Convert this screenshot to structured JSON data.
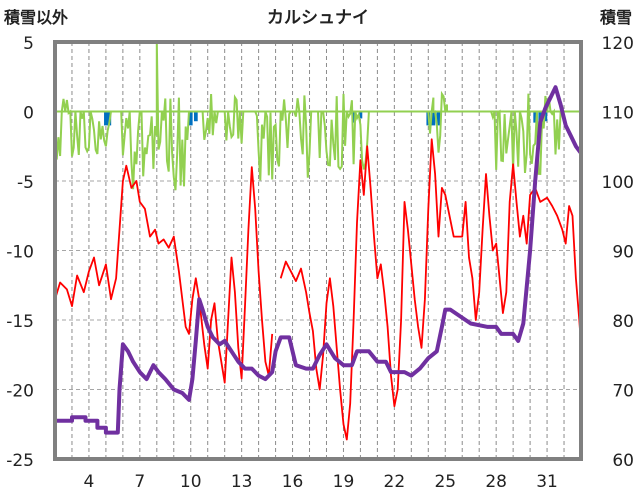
{
  "chart_data": {
    "type": "line",
    "title": "カルシュナイ",
    "left_axis_label": "積雪以外",
    "right_axis_label": "積雪",
    "left_ylim": [
      -25,
      5
    ],
    "left_yticks": [
      "5",
      "0",
      "-5",
      "-10",
      "-15",
      "-20",
      "-25"
    ],
    "right_ylim": [
      60,
      120
    ],
    "right_yticks": [
      "120",
      "110",
      "100",
      "90",
      "80",
      "70",
      "60"
    ],
    "xlim": [
      2,
      33
    ],
    "xticks": [
      "4",
      "7",
      "10",
      "13",
      "16",
      "19",
      "22",
      "25",
      "28",
      "31"
    ],
    "grid": "horizontal dashed every 5 units, vertical dashed every day",
    "colors": {
      "temperature": "#ff0000",
      "snow_depth": "#7030a0",
      "precipitation": "#92d050",
      "snowfall": "#0070c0",
      "frame": "#808080"
    },
    "series": [
      {
        "key": "temperature",
        "axis": "left",
        "points": [
          [
            2.0,
            -13.5
          ],
          [
            2.3,
            -12.3
          ],
          [
            2.7,
            -12.8
          ],
          [
            3.0,
            -14.0
          ],
          [
            3.3,
            -11.8
          ],
          [
            3.7,
            -13.0
          ],
          [
            4.0,
            -11.5
          ],
          [
            4.3,
            -10.5
          ],
          [
            4.6,
            -12.5
          ],
          [
            5.0,
            -11.0
          ],
          [
            5.3,
            -13.5
          ],
          [
            5.6,
            -12.0
          ],
          [
            5.8,
            -8.5
          ],
          [
            6.0,
            -5.0
          ],
          [
            6.2,
            -3.9
          ],
          [
            6.5,
            -5.5
          ],
          [
            6.8,
            -5.0
          ],
          [
            7.0,
            -6.5
          ],
          [
            7.3,
            -7.0
          ],
          [
            7.6,
            -9.0
          ],
          [
            7.9,
            -8.5
          ],
          [
            8.1,
            -9.5
          ],
          [
            8.4,
            -9.2
          ],
          [
            8.7,
            -9.8
          ],
          [
            9.0,
            -9.0
          ],
          [
            9.3,
            -11.5
          ],
          [
            9.5,
            -13.5
          ],
          [
            9.7,
            -15.5
          ],
          [
            9.9,
            -16.0
          ],
          [
            10.1,
            -13.5
          ],
          [
            10.3,
            -12.0
          ],
          [
            10.5,
            -13.5
          ],
          [
            10.8,
            -16.8
          ],
          [
            11.0,
            -18.5
          ],
          [
            11.2,
            -15.0
          ],
          [
            11.4,
            -13.8
          ],
          [
            11.6,
            -16.5
          ],
          [
            11.8,
            -18.0
          ],
          [
            12.0,
            -19.5
          ],
          [
            12.2,
            -15.0
          ],
          [
            12.4,
            -10.5
          ],
          [
            12.6,
            -13.0
          ],
          [
            12.8,
            -17.0
          ],
          [
            13.0,
            -19.2
          ],
          [
            13.2,
            -14.0
          ],
          [
            13.4,
            -8.5
          ],
          [
            13.6,
            -4.0
          ],
          [
            13.8,
            -7.0
          ],
          [
            14.0,
            -11.5
          ],
          [
            14.2,
            -15.0
          ],
          [
            14.4,
            -18.0
          ],
          [
            14.6,
            -19.0
          ],
          [
            14.8,
            -16.0
          ],
          [
            15.0,
            -13.5
          ],
          [
            15.3,
            -12.0
          ],
          [
            15.6,
            -10.8
          ],
          [
            15.9,
            -11.5
          ],
          [
            16.2,
            -12.2
          ],
          [
            16.5,
            -11.3
          ],
          [
            16.8,
            -13.0
          ],
          [
            17.0,
            -14.5
          ],
          [
            17.2,
            -15.8
          ],
          [
            17.4,
            -18.5
          ],
          [
            17.6,
            -20.0
          ],
          [
            17.8,
            -17.5
          ],
          [
            18.0,
            -13.8
          ],
          [
            18.2,
            -12.0
          ],
          [
            18.4,
            -14.0
          ],
          [
            18.6,
            -17.0
          ],
          [
            18.8,
            -20.0
          ],
          [
            19.0,
            -22.5
          ],
          [
            19.2,
            -23.6
          ],
          [
            19.4,
            -21.0
          ],
          [
            19.6,
            -15.0
          ],
          [
            19.8,
            -8.0
          ],
          [
            20.0,
            -3.5
          ],
          [
            20.2,
            -6.0
          ],
          [
            20.4,
            -2.5
          ],
          [
            20.6,
            -5.5
          ],
          [
            20.8,
            -9.0
          ],
          [
            21.0,
            -12.0
          ],
          [
            21.2,
            -11.0
          ],
          [
            21.4,
            -13.0
          ],
          [
            21.6,
            -15.5
          ],
          [
            21.8,
            -19.0
          ],
          [
            22.0,
            -21.2
          ],
          [
            22.2,
            -20.0
          ],
          [
            22.4,
            -15.0
          ],
          [
            22.6,
            -6.5
          ],
          [
            22.8,
            -8.5
          ],
          [
            23.0,
            -11.0
          ],
          [
            23.2,
            -13.5
          ],
          [
            23.4,
            -15.5
          ],
          [
            23.6,
            -17.0
          ],
          [
            23.8,
            -13.5
          ],
          [
            24.0,
            -7.0
          ],
          [
            24.2,
            -2.0
          ],
          [
            24.4,
            -4.5
          ],
          [
            24.6,
            -9.0
          ],
          [
            24.8,
            -5.5
          ],
          [
            25.0,
            -6.0
          ],
          [
            25.5,
            -9.0
          ],
          [
            26.0,
            -9.0
          ],
          [
            26.2,
            -6.5
          ],
          [
            26.4,
            -10.5
          ],
          [
            26.6,
            -12.0
          ],
          [
            26.8,
            -15.0
          ],
          [
            27.0,
            -13.0
          ],
          [
            27.2,
            -8.5
          ],
          [
            27.4,
            -4.5
          ],
          [
            27.6,
            -7.5
          ],
          [
            27.8,
            -10.0
          ],
          [
            28.0,
            -9.5
          ],
          [
            28.2,
            -12.0
          ],
          [
            28.4,
            -14.5
          ],
          [
            28.6,
            -13.0
          ],
          [
            28.8,
            -6.5
          ],
          [
            29.0,
            -3.8
          ],
          [
            29.2,
            -6.5
          ],
          [
            29.4,
            -9.0
          ],
          [
            29.6,
            -7.5
          ],
          [
            29.8,
            -9.5
          ],
          [
            30.0,
            -6.0
          ],
          [
            30.3,
            -5.5
          ],
          [
            30.6,
            -6.5
          ],
          [
            31.0,
            -6.2
          ],
          [
            31.3,
            -6.8
          ],
          [
            31.6,
            -7.5
          ],
          [
            31.9,
            -8.5
          ],
          [
            32.1,
            -9.5
          ],
          [
            32.3,
            -6.8
          ],
          [
            32.5,
            -7.5
          ],
          [
            32.7,
            -12.0
          ],
          [
            32.9,
            -15.0
          ],
          [
            33.0,
            -16.8
          ]
        ],
        "gaps": [
          [
            14.95,
            15.25
          ],
          [
            25.05,
            25.45
          ],
          [
            26.05,
            26.15
          ]
        ]
      },
      {
        "key": "snow_depth",
        "axis": "right",
        "points": [
          [
            2.0,
            65.5
          ],
          [
            3.0,
            65.5
          ],
          [
            3.0,
            66.0
          ],
          [
            3.8,
            66.0
          ],
          [
            3.8,
            65.5
          ],
          [
            4.5,
            65.5
          ],
          [
            4.5,
            64.5
          ],
          [
            5.0,
            64.5
          ],
          [
            5.0,
            63.8
          ],
          [
            5.7,
            63.8
          ],
          [
            5.8,
            70.0
          ],
          [
            6.0,
            76.5
          ],
          [
            6.3,
            75.5
          ],
          [
            6.6,
            74.0
          ],
          [
            7.0,
            72.5
          ],
          [
            7.4,
            71.5
          ],
          [
            7.8,
            73.5
          ],
          [
            8.1,
            72.5
          ],
          [
            8.5,
            71.5
          ],
          [
            9.0,
            70.0
          ],
          [
            9.5,
            69.5
          ],
          [
            9.9,
            68.5
          ],
          [
            10.1,
            71.5
          ],
          [
            10.3,
            77.0
          ],
          [
            10.5,
            83.0
          ],
          [
            10.7,
            81.5
          ],
          [
            11.0,
            79.0
          ],
          [
            11.3,
            77.5
          ],
          [
            11.7,
            76.5
          ],
          [
            12.0,
            77.0
          ],
          [
            12.4,
            75.5
          ],
          [
            12.8,
            74.0
          ],
          [
            13.2,
            73.0
          ],
          [
            13.6,
            73.0
          ],
          [
            14.0,
            72.0
          ],
          [
            14.4,
            71.5
          ],
          [
            14.8,
            72.5
          ],
          [
            15.0,
            75.5
          ],
          [
            15.3,
            77.5
          ],
          [
            15.8,
            77.5
          ],
          [
            16.2,
            73.5
          ],
          [
            16.8,
            73.0
          ],
          [
            17.2,
            73.0
          ],
          [
            17.6,
            75.0
          ],
          [
            18.0,
            76.5
          ],
          [
            18.5,
            74.5
          ],
          [
            19.0,
            73.5
          ],
          [
            19.5,
            73.5
          ],
          [
            19.8,
            75.5
          ],
          [
            20.5,
            75.5
          ],
          [
            21.0,
            74.0
          ],
          [
            21.5,
            74.0
          ],
          [
            21.8,
            72.5
          ],
          [
            22.2,
            72.5
          ],
          [
            22.6,
            72.5
          ],
          [
            23.0,
            72.0
          ],
          [
            23.5,
            73.0
          ],
          [
            24.0,
            74.5
          ],
          [
            24.5,
            75.5
          ],
          [
            24.8,
            79.0
          ],
          [
            25.0,
            81.5
          ],
          [
            25.3,
            81.5
          ],
          [
            26.5,
            79.5
          ],
          [
            27.5,
            79.0
          ],
          [
            28.0,
            79.0
          ],
          [
            28.3,
            78.0
          ],
          [
            29.0,
            78.0
          ],
          [
            29.3,
            77.0
          ],
          [
            29.6,
            79.5
          ],
          [
            30.0,
            90.0
          ],
          [
            30.3,
            100.0
          ],
          [
            30.6,
            108.5
          ],
          [
            30.9,
            110.5
          ],
          [
            31.2,
            112.0
          ],
          [
            31.5,
            113.5
          ],
          [
            31.8,
            111.0
          ],
          [
            32.1,
            108.0
          ],
          [
            32.4,
            106.5
          ],
          [
            32.7,
            105.0
          ],
          [
            33.0,
            104.0
          ]
        ]
      },
      {
        "key": "precipitation",
        "axis": "left",
        "baseline": 0
      },
      {
        "key": "snowfall",
        "axis": "left",
        "bars": [
          [
            5.0,
            -1.0
          ],
          [
            5.2,
            -1.0
          ],
          [
            10.0,
            -1.0
          ],
          [
            10.3,
            -0.7
          ],
          [
            19.6,
            -0.8
          ],
          [
            20.0,
            -0.5
          ],
          [
            24.0,
            -1.0
          ],
          [
            24.3,
            -1.0
          ],
          [
            24.6,
            -1.0
          ],
          [
            30.3,
            -0.8
          ],
          [
            30.6,
            -1.0
          ],
          [
            30.9,
            -0.7
          ]
        ]
      }
    ]
  }
}
